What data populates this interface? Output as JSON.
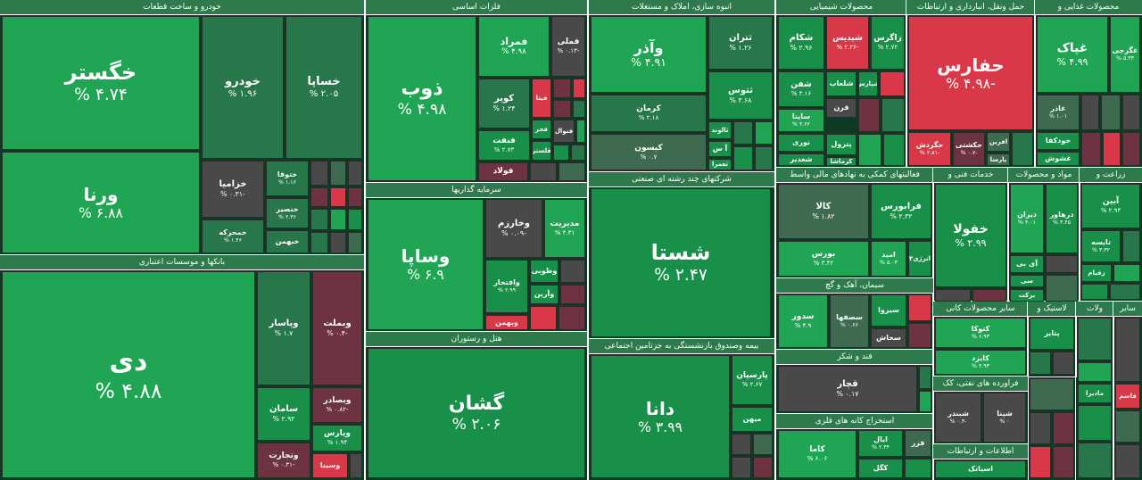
{
  "colors": {
    "strong_green": "#1fa553",
    "green": "#19904a",
    "mid_green": "#27774a",
    "muted_green": "#3e6a4f",
    "neutral": "#494949",
    "muted_red": "#6e3340",
    "red": "#d93848",
    "header": "#2f7a4c"
  },
  "sectors": [
    {
      "key": "auto",
      "title": "خودرو و ساخت قطعات"
    },
    {
      "key": "bank",
      "title": "بانکها و موسسات اعتباری"
    },
    {
      "key": "metal",
      "title": "فلزات اساسی"
    },
    {
      "key": "invest",
      "title": "سرمایه گذاریها"
    },
    {
      "key": "hotel",
      "title": "هتل و رستوران"
    },
    {
      "key": "building",
      "title": "انبوه سازی، املاک و مستغلات"
    },
    {
      "key": "multi",
      "title": "شرکتهای چند رشته ای صنعتی"
    },
    {
      "key": "pension",
      "title": "بیمه وصندوق بازنشستگی به جزتامین اجتماعی"
    },
    {
      "key": "chem",
      "title": "محصولات شیمیایی"
    },
    {
      "key": "transport",
      "title": "حمل ونقل، انبارداری و ارتباطات"
    },
    {
      "key": "food",
      "title": "محصولات غذایی و"
    },
    {
      "key": "finaux",
      "title": "فعالیتهای کمکی به نهادهای مالی واسط"
    },
    {
      "key": "tech",
      "title": "خدمات فنی و"
    },
    {
      "key": "material",
      "title": "مواد و محصولات"
    },
    {
      "key": "agri",
      "title": "زراعت و"
    },
    {
      "key": "cement",
      "title": "سیمان، آهک و گچ"
    },
    {
      "key": "sugar",
      "title": "قند و شکر"
    },
    {
      "key": "mining",
      "title": "استخراج کانه های فلزی"
    },
    {
      "key": "misc",
      "title": "سایر محصولات کانی"
    },
    {
      "key": "rubber",
      "title": "لاستیک و"
    },
    {
      "key": "oil",
      "title": "فراورده های نفتی، کک"
    },
    {
      "key": "metalprod",
      "title": "ولات"
    },
    {
      "key": "other",
      "title": "سایر"
    },
    {
      "key": "info",
      "title": "اطلاعات و ارتباطات"
    }
  ],
  "tiles": [
    {
      "name": "خگستر",
      "pct": "۴.۷۴ %",
      "c": "strong_green"
    },
    {
      "name": "ورنا",
      "pct": "۶.۸۸ %",
      "c": "strong_green"
    },
    {
      "name": "خودرو",
      "pct": "۱.۹۶ %",
      "c": "mid_green"
    },
    {
      "name": "خساپا",
      "pct": "۲.۰۵ %",
      "c": "mid_green"
    },
    {
      "name": "خزامیا",
      "pct": "-۰.۳۱ %",
      "c": "neutral"
    },
    {
      "name": "ختوقا",
      "pct": "۱.۱۶ %",
      "c": "mid_green"
    },
    {
      "name": "خنصیر",
      "pct": "۲.۳۶ %",
      "c": "mid_green"
    },
    {
      "name": "خمحرکه",
      "pct": "۱.۴۶ %",
      "c": "mid_green"
    },
    {
      "name": "خبهمن",
      "pct": "",
      "c": "mid_green"
    },
    {
      "name": "دی",
      "pct": "۴.۸۸ %",
      "c": "strong_green"
    },
    {
      "name": "وپاسار",
      "pct": "۱.۷ %",
      "c": "mid_green"
    },
    {
      "name": "وبملت",
      "pct": "-۰.۴ %",
      "c": "muted_red"
    },
    {
      "name": "سامان",
      "pct": "۲.۹۲ %",
      "c": "green"
    },
    {
      "name": "وبصادر",
      "pct": "-۰.۸۲ %",
      "c": "muted_red"
    },
    {
      "name": "وپارس",
      "pct": "۱.۹۴ %",
      "c": "green"
    },
    {
      "name": "وتجارت",
      "pct": "-۰.۳۱ %",
      "c": "muted_red"
    },
    {
      "name": "وسینا",
      "pct": "",
      "c": "red"
    },
    {
      "name": "ذوب",
      "pct": "۴.۹۸ %",
      "c": "strong_green"
    },
    {
      "name": "فمراد",
      "pct": "۴.۹۸ %",
      "c": "strong_green"
    },
    {
      "name": "فملی",
      "pct": "-۰.۱۳ %",
      "c": "neutral"
    },
    {
      "name": "کویر",
      "pct": "۱.۲۴ %",
      "c": "mid_green"
    },
    {
      "name": "فیتا",
      "pct": "",
      "c": "red"
    },
    {
      "name": "فنفت",
      "pct": "۲.۷۳ %",
      "c": "green"
    },
    {
      "name": "فجر",
      "pct": "",
      "c": "green"
    },
    {
      "name": "فنوال",
      "pct": "",
      "c": "neutral"
    },
    {
      "name": "فلستر",
      "pct": "",
      "c": "green"
    },
    {
      "name": "فولاد",
      "pct": "",
      "c": "muted_red"
    },
    {
      "name": "وساپا",
      "pct": "۶.۹ %",
      "c": "strong_green"
    },
    {
      "name": "وخارزم",
      "pct": "-۰.۰۹ %",
      "c": "neutral"
    },
    {
      "name": "مدیریت",
      "pct": "۴.۳۱ %",
      "c": "strong_green"
    },
    {
      "name": "وطوبی",
      "pct": "",
      "c": "green"
    },
    {
      "name": "وافتخار",
      "pct": "۲.۹۹ %",
      "c": "green"
    },
    {
      "name": "وآرین",
      "pct": "",
      "c": "green"
    },
    {
      "name": "وبهمن",
      "pct": "",
      "c": "red"
    },
    {
      "name": "گشان",
      "pct": "۲.۰۶ %",
      "c": "green"
    },
    {
      "name": "وآذر",
      "pct": "۴.۹۱ %",
      "c": "strong_green"
    },
    {
      "name": "ثتران",
      "pct": "۱.۲۶ %",
      "c": "mid_green"
    },
    {
      "name": "ثتوس",
      "pct": "۳.۶۸ %",
      "c": "green"
    },
    {
      "name": "کرمان",
      "pct": "۲.۱۸ %",
      "c": "mid_green"
    },
    {
      "name": "ثالوند",
      "pct": "",
      "c": "green"
    },
    {
      "name": "کیسون",
      "pct": "۰.۷ %",
      "c": "muted_green"
    },
    {
      "name": "آ س",
      "pct": "",
      "c": "green"
    },
    {
      "name": "ثعمرا",
      "pct": "",
      "c": "green"
    },
    {
      "name": "شستا",
      "pct": "۲.۴۷ %",
      "c": "green"
    },
    {
      "name": "دانا",
      "pct": "۳.۹۹ %",
      "c": "green"
    },
    {
      "name": "پارسیان",
      "pct": "۲.۶۷ %",
      "c": "green"
    },
    {
      "name": "میهن",
      "pct": "",
      "c": "green"
    },
    {
      "name": "شکام",
      "pct": "۲.۹۶ %",
      "c": "green"
    },
    {
      "name": "شیدیس",
      "pct": "-۲.۲۶ %",
      "c": "red"
    },
    {
      "name": "زاگرس",
      "pct": "۲.۷۲ %",
      "c": "green"
    },
    {
      "name": "شفن",
      "pct": "۳.۱۶ %",
      "c": "green"
    },
    {
      "name": "شلعاب",
      "pct": "",
      "c": "green"
    },
    {
      "name": "ساینا",
      "pct": "۴.۶۲ %",
      "c": "strong_green"
    },
    {
      "name": "شپارس",
      "pct": "",
      "c": "green"
    },
    {
      "name": "قرن",
      "pct": "",
      "c": "neutral"
    },
    {
      "name": "نوری",
      "pct": "",
      "c": "green"
    },
    {
      "name": "پترول",
      "pct": "",
      "c": "green"
    },
    {
      "name": "شغدیر",
      "pct": "",
      "c": "green"
    },
    {
      "name": "کرماشا",
      "pct": "",
      "c": "green"
    },
    {
      "name": "حفارس",
      "pct": "-۴.۹۸ %",
      "c": "red"
    },
    {
      "name": "حگردش",
      "pct": "-۲.۸۱ %",
      "c": "red"
    },
    {
      "name": "حکشتی",
      "pct": "-۰.۷ %",
      "c": "muted_red"
    },
    {
      "name": "افرین",
      "pct": "",
      "c": "muted_green"
    },
    {
      "name": "پارسا",
      "pct": "",
      "c": "muted_green"
    },
    {
      "name": "غپاک",
      "pct": "۴.۹۹ %",
      "c": "strong_green"
    },
    {
      "name": "غگرجی",
      "pct": "۵.۳۳ %",
      "c": "strong_green"
    },
    {
      "name": "غاذر",
      "pct": "۱.۰۱ %",
      "c": "muted_green"
    },
    {
      "name": "خودکفا",
      "pct": "",
      "c": "green"
    },
    {
      "name": "غشوش",
      "pct": "",
      "c": "green"
    },
    {
      "name": "کالا",
      "pct": "۱.۸۲ %",
      "c": "muted_green"
    },
    {
      "name": "فرابورس",
      "pct": "۲.۳۲ %",
      "c": "green"
    },
    {
      "name": "بورس",
      "pct": "۳.۴۲ %",
      "c": "strong_green"
    },
    {
      "name": "امید",
      "pct": "۵.۰۳ %",
      "c": "strong_green"
    },
    {
      "name": "انرژی۳",
      "pct": "",
      "c": "green"
    },
    {
      "name": "خفولا",
      "pct": "۲.۹۹ %",
      "c": "green"
    },
    {
      "name": "دیران",
      "pct": "۴.۰۱ %",
      "c": "strong_green"
    },
    {
      "name": "درهاور",
      "pct": "۳.۴۵ %",
      "c": "green"
    },
    {
      "name": "آی بی",
      "pct": "",
      "c": "green"
    },
    {
      "name": "سی",
      "pct": "",
      "c": "green"
    },
    {
      "name": "برکت",
      "pct": "",
      "c": "green"
    },
    {
      "name": "آبین",
      "pct": "۲.۹۳ %",
      "c": "green"
    },
    {
      "name": "تایسه",
      "pct": "۳.۳۲ %",
      "c": "green"
    },
    {
      "name": "زقیام",
      "pct": "",
      "c": "green"
    },
    {
      "name": "سدور",
      "pct": "۴.۹ %",
      "c": "strong_green"
    },
    {
      "name": "سصفها",
      "pct": "۰.۶۶ %",
      "c": "muted_green"
    },
    {
      "name": "سیزوا",
      "pct": "",
      "c": "green"
    },
    {
      "name": "سخاش",
      "pct": "",
      "c": "neutral"
    },
    {
      "name": "قچار",
      "pct": "۰.۱۷ %",
      "c": "neutral"
    },
    {
      "name": "کاما",
      "pct": "۶.۰۶ %",
      "c": "strong_green"
    },
    {
      "name": "ایال",
      "pct": "۲.۳۴ %",
      "c": "green"
    },
    {
      "name": "فزر",
      "pct": "",
      "c": "muted_green"
    },
    {
      "name": "کگل",
      "pct": "",
      "c": "green"
    },
    {
      "name": "کتوکا",
      "pct": "۶.۹۳ %",
      "c": "strong_green"
    },
    {
      "name": "کایزد",
      "pct": "۴.۹۳ %",
      "c": "strong_green"
    },
    {
      "name": "پتایر",
      "pct": "",
      "c": "green"
    },
    {
      "name": "شبندر",
      "pct": "-۰.۳ %",
      "c": "neutral"
    },
    {
      "name": "شپنا",
      "pct": "۰ %",
      "c": "neutral"
    },
    {
      "name": "ماديرا",
      "pct": "",
      "c": "green"
    },
    {
      "name": "قاسم",
      "pct": "",
      "c": "red"
    },
    {
      "name": "اسیاتک",
      "pct": "",
      "c": "green"
    }
  ]
}
